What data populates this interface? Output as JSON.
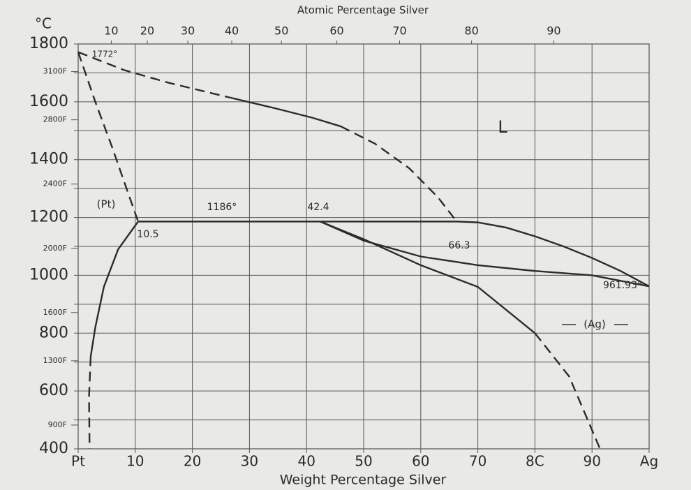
{
  "chart_data": {
    "type": "line",
    "title": "Atomic Percentage Silver",
    "xlabel": "Weight Percentage Silver",
    "ylabel": "°C",
    "xlim": [
      0,
      100
    ],
    "xticks": [
      {
        "value": 0,
        "label": "Pt"
      },
      10,
      20,
      30,
      40,
      50,
      60,
      70,
      {
        "value": 80,
        "label": "8C"
      },
      90,
      {
        "value": 100,
        "label": "Ag"
      }
    ],
    "x2ticks": [
      {
        "value": 5.8,
        "label": "10"
      },
      {
        "value": 12.1,
        "label": "20"
      },
      {
        "value": 19.2,
        "label": "30"
      },
      {
        "value": 26.9,
        "label": "40"
      },
      {
        "value": 35.6,
        "label": "50"
      },
      {
        "value": 45.3,
        "label": "60"
      },
      {
        "value": 56.3,
        "label": "70"
      },
      {
        "value": 68.9,
        "label": "80"
      },
      {
        "value": 83.3,
        "label": "90"
      }
    ],
    "ylim": [
      400,
      1800
    ],
    "yticks": [
      400,
      600,
      800,
      1000,
      1200,
      1400,
      1600,
      1800
    ],
    "yminorticks": [
      500,
      700,
      900,
      1100,
      1300,
      1500,
      1700
    ],
    "y2lim": [
      752,
      3272
    ],
    "y2ticks": [
      {
        "value": 900,
        "label": "900F"
      },
      {
        "value": 1300,
        "label": "1300F"
      },
      {
        "value": 1600,
        "label": "1600F"
      },
      {
        "value": 2000,
        "label": "2000F"
      },
      {
        "value": 2400,
        "label": "2400F"
      },
      {
        "value": 2800,
        "label": "2800F"
      },
      {
        "value": 3100,
        "label": "3100F"
      }
    ],
    "grid": true,
    "color": "#2c2c2c",
    "series": [
      {
        "dashed": true,
        "x": [
          0,
          8,
          16,
          26.5
        ],
        "values": [
          1772,
          1710,
          1665,
          1615
        ]
      },
      {
        "dashed": false,
        "x": [
          26.5,
          34,
          41,
          46
        ],
        "values": [
          1615,
          1580,
          1545,
          1515
        ]
      },
      {
        "dashed": true,
        "x": [
          46,
          52,
          58,
          63,
          66.3
        ],
        "values": [
          1515,
          1455,
          1370,
          1270,
          1186
        ]
      },
      {
        "dashed": true,
        "x": [
          0,
          3,
          6,
          9,
          10.5
        ],
        "values": [
          1772,
          1600,
          1440,
          1270,
          1186
        ]
      },
      {
        "dashed": false,
        "x": [
          10.5,
          42.4,
          66.3,
          70,
          75,
          80,
          85,
          90,
          95,
          100
        ],
        "values": [
          1186,
          1186,
          1186,
          1183,
          1165,
          1135,
          1100,
          1060,
          1015,
          961.93
        ]
      },
      {
        "dashed": false,
        "x": [
          42.4,
          50,
          60,
          70,
          80,
          90,
          100
        ],
        "values": [
          1186,
          1120,
          1065,
          1035,
          1015,
          1000,
          961.93
        ]
      },
      {
        "dashed": false,
        "x": [
          42.4,
          50,
          60,
          70,
          80
        ],
        "values": [
          1186,
          1125,
          1035,
          960,
          800
        ]
      },
      {
        "dashed": true,
        "x": [
          80,
          86,
          91.4
        ],
        "values": [
          800,
          650,
          400
        ]
      },
      {
        "dashed": false,
        "x": [
          10.5,
          7,
          4.5,
          3,
          2.2
        ],
        "values": [
          1186,
          1090,
          960,
          820,
          720
        ]
      },
      {
        "dashed": true,
        "x": [
          2.2,
          1.9,
          2
        ],
        "values": [
          720,
          580,
          400
        ]
      }
    ],
    "annotations": [
      "1772°",
      "(Pt)",
      "1186°",
      "42.4",
      "10.5",
      "66.3",
      "L",
      "961.93°",
      "(Ag)"
    ]
  }
}
